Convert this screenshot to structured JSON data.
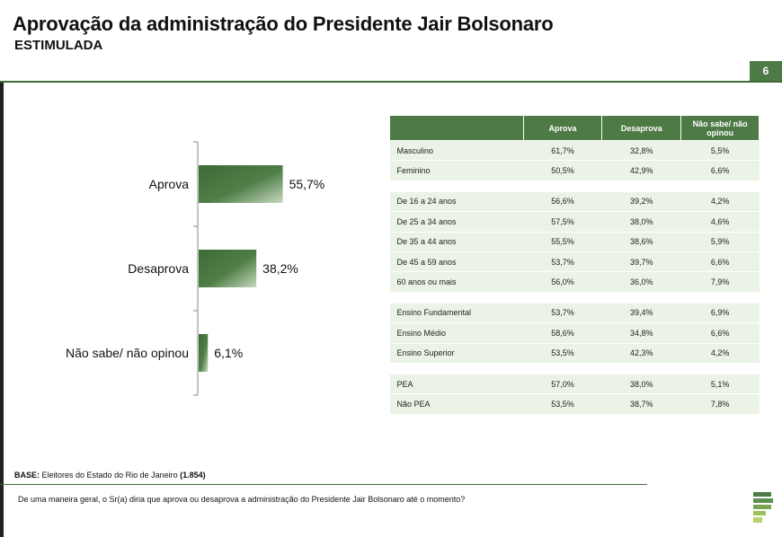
{
  "header": {
    "title": "Aprovação da administração do Presidente Jair Bolsonaro",
    "subtitle": "ESTIMULADA",
    "page_number": "6"
  },
  "chart_data": {
    "type": "bar",
    "orientation": "horizontal",
    "categories": [
      "Aprova",
      "Desaprova",
      "Não sabe/ não opinou"
    ],
    "values": [
      55.7,
      38.2,
      6.1
    ],
    "labels": [
      "55,7%",
      "38,2%",
      "6,1%"
    ],
    "unit": "%",
    "xlim": [
      0,
      100
    ],
    "colors": {
      "bar_dark": "#3d6b36",
      "bar_light": "#c7d9bf",
      "axis": "#888888"
    }
  },
  "table": {
    "headers": [
      "",
      "Aprova",
      "Desaprova",
      "Não sabe/ não opinou"
    ],
    "groups": [
      [
        {
          "label": "Masculino",
          "values": [
            "61,7%",
            "32,8%",
            "5,5%"
          ]
        },
        {
          "label": "Feminino",
          "values": [
            "50,5%",
            "42,9%",
            "6,6%"
          ]
        }
      ],
      [
        {
          "label": "De 16 a 24 anos",
          "values": [
            "56,6%",
            "39,2%",
            "4,2%"
          ]
        },
        {
          "label": "De 25 a 34 anos",
          "values": [
            "57,5%",
            "38,0%",
            "4,6%"
          ]
        },
        {
          "label": "De 35 a 44 anos",
          "values": [
            "55,5%",
            "38,6%",
            "5,9%"
          ]
        },
        {
          "label": "De 45 a 59 anos",
          "values": [
            "53,7%",
            "39,7%",
            "6,6%"
          ]
        },
        {
          "label": "60 anos ou mais",
          "values": [
            "56,0%",
            "36,0%",
            "7,9%"
          ]
        }
      ],
      [
        {
          "label": "Ensino Fundamental",
          "values": [
            "53,7%",
            "39,4%",
            "6,9%"
          ]
        },
        {
          "label": "Ensino Médio",
          "values": [
            "58,6%",
            "34,8%",
            "6,6%"
          ]
        },
        {
          "label": "Ensino Superior",
          "values": [
            "53,5%",
            "42,3%",
            "4,2%"
          ]
        }
      ],
      [
        {
          "label": " PEA",
          "values": [
            "57,0%",
            "38,0%",
            "5,1%"
          ]
        },
        {
          "label": " Não PEA",
          "values": [
            "53,5%",
            "38,7%",
            "7,8%"
          ]
        }
      ]
    ]
  },
  "footer": {
    "base_label": "BASE:",
    "base_text": " Eleitores do Estado do Rio de Janeiro ",
    "base_count": "(1.854)",
    "question": "De uma maneira geral, o Sr(a) diria que aprova ou desaprova a administração do Presidente Jair Bolsonaro até o momento?"
  },
  "colors": {
    "accent": "#4d7a45",
    "row_bg": "#eaf3e6"
  }
}
